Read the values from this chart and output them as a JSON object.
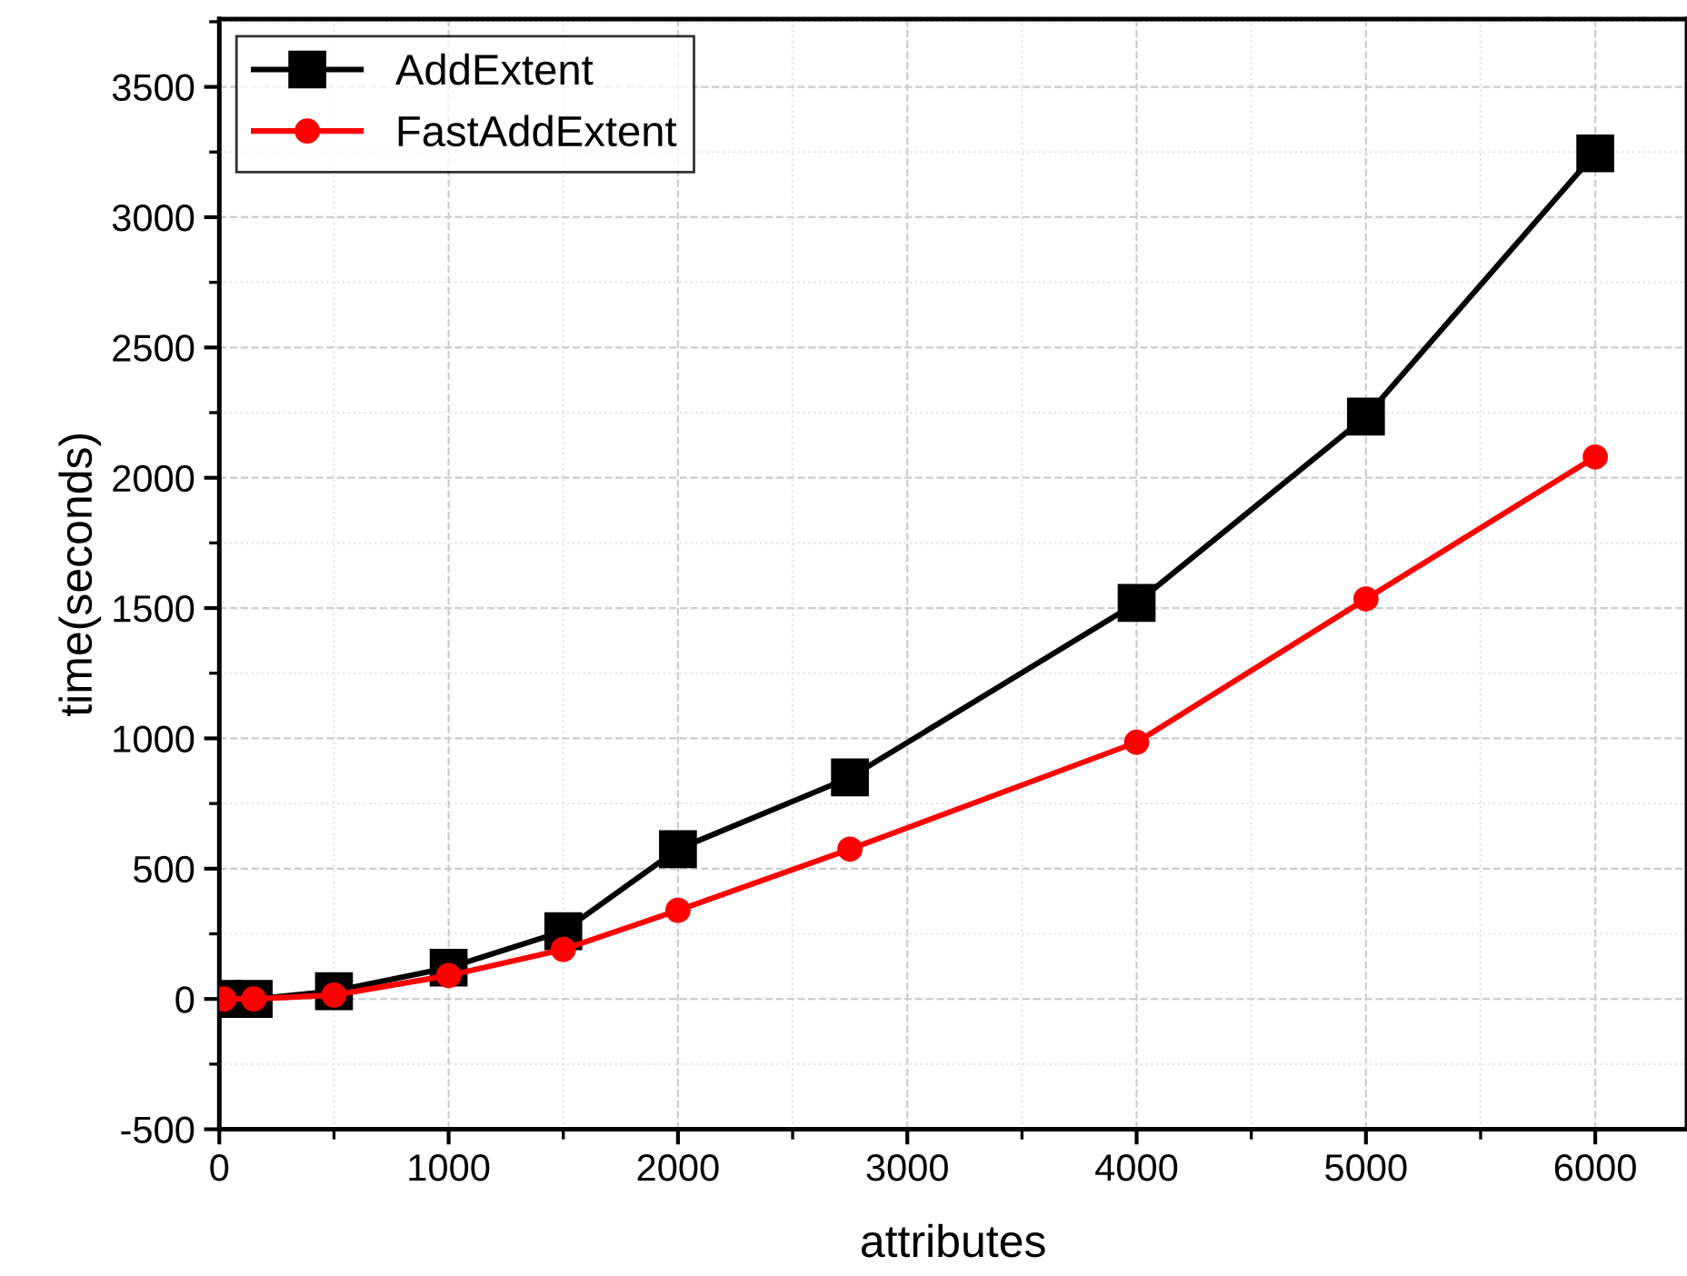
{
  "chart_data": {
    "type": "line",
    "xlabel": "attributes",
    "ylabel": "time(seconds)",
    "x": [
      20,
      150,
      500,
      1000,
      1500,
      2000,
      2750,
      4000,
      5000,
      6000
    ],
    "series": [
      {
        "name": "AddExtent",
        "color": "#000000",
        "marker": "square",
        "values": [
          0,
          0,
          30,
          120,
          260,
          575,
          850,
          1520,
          2235,
          3245
        ]
      },
      {
        "name": "FastAddExtent",
        "color": "#ff0000",
        "marker": "circle",
        "values": [
          0,
          0,
          15,
          90,
          190,
          340,
          575,
          985,
          1535,
          2080
        ]
      }
    ],
    "xlim": [
      0,
      6400
    ],
    "xticks": [
      0,
      1000,
      2000,
      3000,
      4000,
      5000,
      6000
    ],
    "ylim": [
      -500,
      3760
    ],
    "yticks": [
      -500,
      0,
      500,
      1000,
      1500,
      2000,
      2500,
      3000,
      3500
    ],
    "grid": true,
    "legend": "top left",
    "line_style": "solid"
  }
}
